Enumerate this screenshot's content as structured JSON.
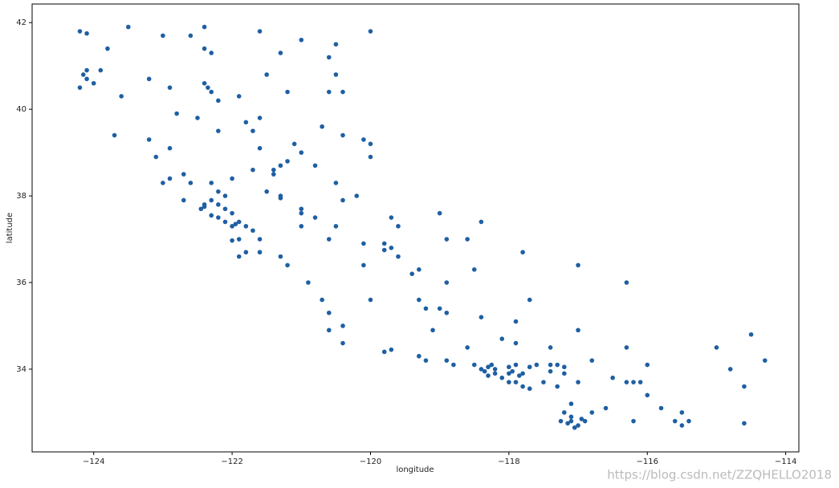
{
  "chart_data": {
    "type": "scatter",
    "x_label": "longitude",
    "y_label": "latitude",
    "watermark": "https://blog.csdn.net/ZZQHELLO2018",
    "color": "#1f5fa3",
    "grid": false,
    "xlim": [
      -124.89,
      -113.81
    ],
    "ylim": [
      32.09,
      42.43
    ],
    "xticks": [
      {
        "value": -124,
        "label": "−124"
      },
      {
        "value": -122,
        "label": "−122"
      },
      {
        "value": -120,
        "label": "−120"
      },
      {
        "value": -118,
        "label": "−118"
      },
      {
        "value": -116,
        "label": "−116"
      },
      {
        "value": -114,
        "label": "−114"
      }
    ],
    "yticks": [
      34,
      36,
      38,
      40,
      42
    ],
    "x": [
      -124.2,
      -124.1,
      -123.5,
      -123.0,
      -122.6,
      -122.4,
      -122.3,
      -121.6,
      -121.0,
      -120.5,
      -120.0,
      -122.4,
      -123.8,
      -124.1,
      -124.15,
      -124.1,
      -124.0,
      -123.9,
      -124.2,
      -123.6,
      -123.2,
      -122.9,
      -122.4,
      -122.35,
      -122.3,
      -122.2,
      -121.9,
      -121.5,
      -121.2,
      -120.6,
      -120.4,
      -121.8,
      -121.6,
      -121.7,
      -122.2,
      -122.9,
      -123.2,
      -123.7,
      -123.1,
      -122.7,
      -122.9,
      -122.6,
      -122.3,
      -122.2,
      -122.1,
      -122.4,
      -122.4,
      -122.45,
      -122.3,
      -122.2,
      -122.1,
      -122.0,
      -121.9,
      -121.95,
      -121.8,
      -122.1,
      -122.2,
      -122.3,
      -122.0,
      -121.7,
      -121.6,
      -121.9,
      -122.0,
      -121.8,
      -121.9,
      -121.6,
      -121.3,
      -121.2,
      -120.9,
      -120.7,
      -120.6,
      -120.4,
      -120.6,
      -120.4,
      -119.8,
      -119.7,
      -119.3,
      -119.2,
      -118.9,
      -118.8,
      -118.5,
      -118.4,
      -118.3,
      -118.2,
      -118.2,
      -118.1,
      -118.3,
      -118.0,
      -117.9,
      -117.8,
      -117.9,
      -117.8,
      -117.7,
      -118.0,
      -117.6,
      -117.4,
      -117.3,
      -117.2,
      -117.4,
      -117.2,
      -117.0,
      -117.3,
      -117.1,
      -117.2,
      -117.1,
      -117.15,
      -117.0,
      -117.05,
      -116.9,
      -116.8,
      -116.5,
      -116.3,
      -116.2,
      -116.0,
      -115.6,
      -115.5,
      -115.5,
      -114.6,
      -114.5,
      -114.3,
      -114.6,
      -115.0,
      -116.0,
      -116.3,
      -116.8,
      -117.0,
      -117.4,
      -117.9,
      -118.1,
      -118.4,
      -117.7,
      -118.9,
      -119.0,
      -119.2,
      -119.3,
      -119.3,
      -119.6,
      -119.8,
      -119.7,
      -119.8,
      -120.1,
      -120.5,
      -120.8,
      -121.0,
      -121.0,
      -121.3,
      -121.3,
      -121.4,
      -121.4,
      -121.3,
      -121.2,
      -121.0,
      -121.1,
      -120.8,
      -120.5,
      -120.2,
      -120.4,
      -119.7,
      -119.6,
      -119.0,
      -118.4,
      -118.6,
      -118.9,
      -120.0,
      -120.0,
      -120.1,
      -120.4,
      -120.7,
      -121.6,
      -121.7,
      -122.0,
      -121.5,
      -121.0,
      -120.6,
      -120.1,
      -119.4,
      -118.9,
      -118.5,
      -117.9,
      -117.0,
      -116.3,
      -117.8,
      -119.1,
      -120.0,
      -122.7,
      -123.0,
      -122.5,
      -120.5,
      -121.3,
      -120.6,
      -122.8,
      -118.6,
      -118.0,
      -117.5,
      -116.6,
      -116.1,
      -115.8,
      -117.85,
      -118.35,
      -118.25,
      -117.95,
      -117.7,
      -116.95,
      -117.1,
      -117.25,
      -116.2,
      -115.4,
      -114.8
    ],
    "values": [
      41.8,
      41.75,
      41.9,
      41.7,
      41.7,
      41.4,
      41.3,
      41.8,
      41.6,
      41.5,
      41.8,
      41.9,
      41.4,
      40.9,
      40.8,
      40.7,
      40.6,
      40.9,
      40.5,
      40.3,
      40.7,
      40.5,
      40.6,
      40.5,
      40.4,
      40.2,
      40.3,
      40.8,
      40.4,
      40.4,
      40.4,
      39.7,
      39.8,
      39.5,
      39.5,
      39.1,
      39.3,
      39.4,
      38.9,
      38.5,
      38.4,
      38.3,
      38.3,
      38.1,
      38.0,
      37.8,
      37.75,
      37.7,
      37.9,
      37.8,
      37.7,
      37.6,
      37.4,
      37.35,
      37.3,
      37.4,
      37.5,
      37.55,
      37.3,
      37.2,
      37.0,
      37.0,
      36.97,
      36.7,
      36.6,
      36.7,
      36.6,
      36.4,
      36.0,
      35.6,
      35.3,
      35.0,
      34.9,
      34.6,
      34.4,
      34.45,
      34.3,
      34.2,
      34.2,
      34.1,
      34.1,
      34.0,
      34.05,
      34.0,
      33.9,
      33.8,
      33.85,
      34.05,
      34.1,
      33.9,
      33.7,
      33.6,
      33.55,
      33.7,
      34.1,
      34.1,
      34.1,
      34.05,
      33.95,
      33.9,
      33.7,
      33.6,
      33.2,
      33.0,
      32.8,
      32.75,
      32.7,
      32.65,
      32.8,
      33.0,
      33.8,
      33.7,
      33.7,
      33.4,
      32.8,
      32.7,
      33.0,
      32.75,
      34.8,
      34.2,
      33.6,
      34.5,
      34.1,
      34.5,
      34.2,
      34.9,
      34.5,
      34.6,
      34.7,
      35.2,
      35.6,
      35.3,
      35.4,
      35.4,
      35.6,
      36.3,
      36.6,
      36.75,
      36.8,
      36.9,
      36.9,
      37.3,
      37.5,
      37.6,
      37.7,
      37.95,
      38.0,
      38.5,
      38.6,
      38.7,
      38.8,
      39.0,
      39.2,
      38.7,
      38.3,
      38.0,
      37.9,
      37.5,
      37.3,
      37.6,
      37.4,
      37.0,
      37.0,
      38.9,
      39.2,
      39.3,
      39.4,
      39.6,
      39.1,
      38.6,
      38.4,
      38.1,
      37.3,
      37.0,
      36.4,
      36.2,
      36.0,
      36.3,
      35.1,
      36.4,
      36.0,
      36.7,
      34.9,
      35.6,
      37.9,
      38.3,
      39.8,
      40.8,
      41.3,
      41.2,
      39.9,
      34.5,
      33.9,
      33.7,
      33.1,
      33.7,
      33.1,
      33.85,
      33.95,
      34.1,
      33.95,
      34.05,
      32.85,
      32.9,
      32.8,
      32.8,
      32.8,
      34.0
    ]
  }
}
